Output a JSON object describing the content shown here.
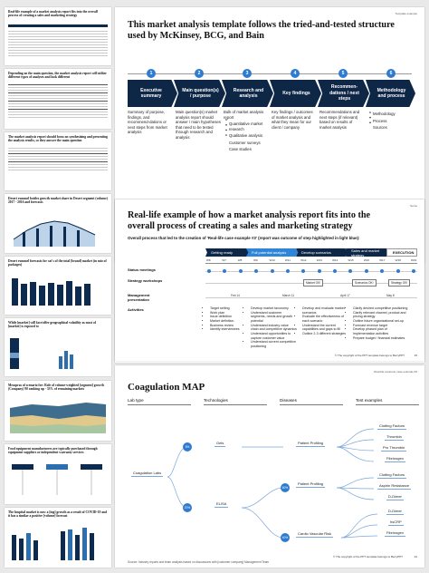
{
  "thumbs": [
    {
      "title": "Real-life example of a market analysis report fits into the overall process of creating a sales and marketing strategy"
    },
    {
      "title": "Depending on the main question, the market analysis report will utilize different types of analyses and look different"
    },
    {
      "title": "The market analysis report should focus on synthesizing and presenting the analysis results, so they answer the main question"
    },
    {
      "title": "Desert rummel bottles growth market share in Desert segment (volume) 2017 - 2016 and forecasts"
    },
    {
      "title": "Desert rummel forecasts for cat's of the total [brand] market (in mio of packages)"
    },
    {
      "title": "While [market] will face/offer geographical volatility as most of [market] is exposed to"
    },
    {
      "title": "Mesopras of scenario for: Role of volume-weighted [segment] growth (Company) 90 ranking up - 33% of remaining markets"
    },
    {
      "title": "Food equipment manufacturers are typically purchased through equipment suppliers or independent warranty services"
    },
    {
      "title": "The hospital market is now a [ing] growth as a result of COVID-19 and it has a similar a positive [volume] forecast"
    }
  ],
  "slide1": {
    "corner": "Template example",
    "title": "This market analysis template follows the tried-and-tested structure used by McKinsey, BCG, and Bain",
    "steps": [
      {
        "num": "1",
        "label": "Executive summary",
        "desc": "Summary of purpose, findings, and recommend-dations or next steps from market analysis",
        "bullets": []
      },
      {
        "num": "2",
        "label": "Main question(s) / purpose",
        "desc": "Main question(s) market analysis report should answer / main hypotheses that need to be tested through research and analysis",
        "bullets": []
      },
      {
        "num": "3",
        "label": "Research and analysis",
        "desc": "Bulk of market analysis report",
        "bullets": [
          "Quantitative market research",
          "Qualitative analysis",
          "Customer surveys",
          "Case studies"
        ]
      },
      {
        "num": "4",
        "label": "Key findings",
        "desc": "Key findings / outcomes of market analysis and what they mean for our client / company",
        "bullets": []
      },
      {
        "num": "5",
        "label": "Recommen-dations / next steps",
        "desc": "Recommendations and next steps (if relevant) based on results of market analysis",
        "bullets": []
      },
      {
        "num": "6",
        "label": "Methodology and process",
        "desc": "",
        "bullets": [
          "Methodology",
          "Process",
          "Sources"
        ]
      }
    ],
    "note": "Note: Some reports will have the key findings up front, following the pyramid principle",
    "footer": "© The copyright of the PPT template belongs to BerryPPT",
    "page": "4"
  },
  "slide2": {
    "corner": "Some",
    "title": "Real-life example of how a market analysis report fits into the overall process of creating a sales and marketing strategy",
    "subtitle": "Overall process that led to the creation of 'Real-life case example #3' (report was outcome of step highlighted in light blue):",
    "phases": [
      {
        "label": "Getting ready",
        "color": "#0e2747"
      },
      {
        "label": "Full potential analysis",
        "color": "#2f86d8"
      },
      {
        "label": "Develop scenarios",
        "color": "#0e2747"
      },
      {
        "label": "Sales and market strategy",
        "color": "#0e2747"
      },
      {
        "label": "EXECUTION",
        "color": "#ffffff"
      }
    ],
    "weeks": [
      "W8",
      "W7",
      "W8",
      "W9",
      "W10",
      "W11",
      "W12",
      "W13",
      "W14",
      "W15",
      "W16",
      "W17",
      "W18",
      "W19"
    ],
    "rows": {
      "status": "Status meetings",
      "workshops": "Strategy workshops",
      "management": "Management presentation",
      "activities": "Activities"
    },
    "boxes": [
      "Market OK!",
      "Scenarios OK!",
      "Strategy OK!"
    ],
    "dates": [
      "Feb 14",
      "March 11",
      "April 17",
      "May 8"
    ],
    "activities": [
      [
        "Target setting",
        "Work plan",
        "Issue definition",
        "Market definition",
        "Business review",
        "Identify interviewees"
      ],
      [
        "Develop market taxonomy",
        "Understand customer segments, needs and growth potential",
        "Understand industry value chain and competitive dynamics",
        "Understand opportunities to capture customer value",
        "Understand current competitive positioning"
      ],
      [
        "Develop and evaluate market scenarios",
        "Evaluate the effectiveness of each scenario",
        "Understand the current capabilities and gaps to fill",
        "Outline 2-3 different strategies"
      ],
      [
        "Clarify desired competitive positioning",
        "Clarify relevant channel, product and pricing strategy",
        "Outline future organizational set-up",
        "Forecast revenue target",
        "Develop phased plan of implementation activities",
        "Prepare budget / financial estimates"
      ]
    ],
    "footer": "© The copyright of the PPT template belongs to BerryPPT",
    "page": "15"
  },
  "slide3": {
    "corner": "Real-life customer case example #3",
    "title": "Coagulation MAP",
    "columns": [
      "Lab type",
      "Technologies",
      "Diseases",
      "Test examples"
    ],
    "lab": "Coagulation Labs",
    "technologies": [
      {
        "label": "Gels",
        "pct": "8%"
      },
      {
        "label": "ELISA",
        "pct": "20%"
      }
    ],
    "diseases": [
      {
        "label": "Patient Profiling",
        "pct": ""
      },
      {
        "label": "Patient Profiling",
        "pct": "60%"
      },
      {
        "label": "Cardio Vascular Risk",
        "pct": "40%"
      }
    ],
    "tests": [
      "Clotting Factors",
      "Thrombin",
      "Pro Thrombin",
      "Fibrinogen",
      "Clotting Factors",
      "Aspirin Resistance",
      "D-Dimer",
      "D-Dimer",
      "hsCRP",
      "Fibrinogen"
    ],
    "source": "Source: Industry reports and team analysis based on discussions with [customer company] Management Team",
    "footer": "© The copyright of the PPT template belongs to BerryPPT",
    "page": "22"
  },
  "colors": {
    "navy": "#0e2747",
    "blue": "#2f7bd0",
    "light_blue": "#2f86d8"
  }
}
